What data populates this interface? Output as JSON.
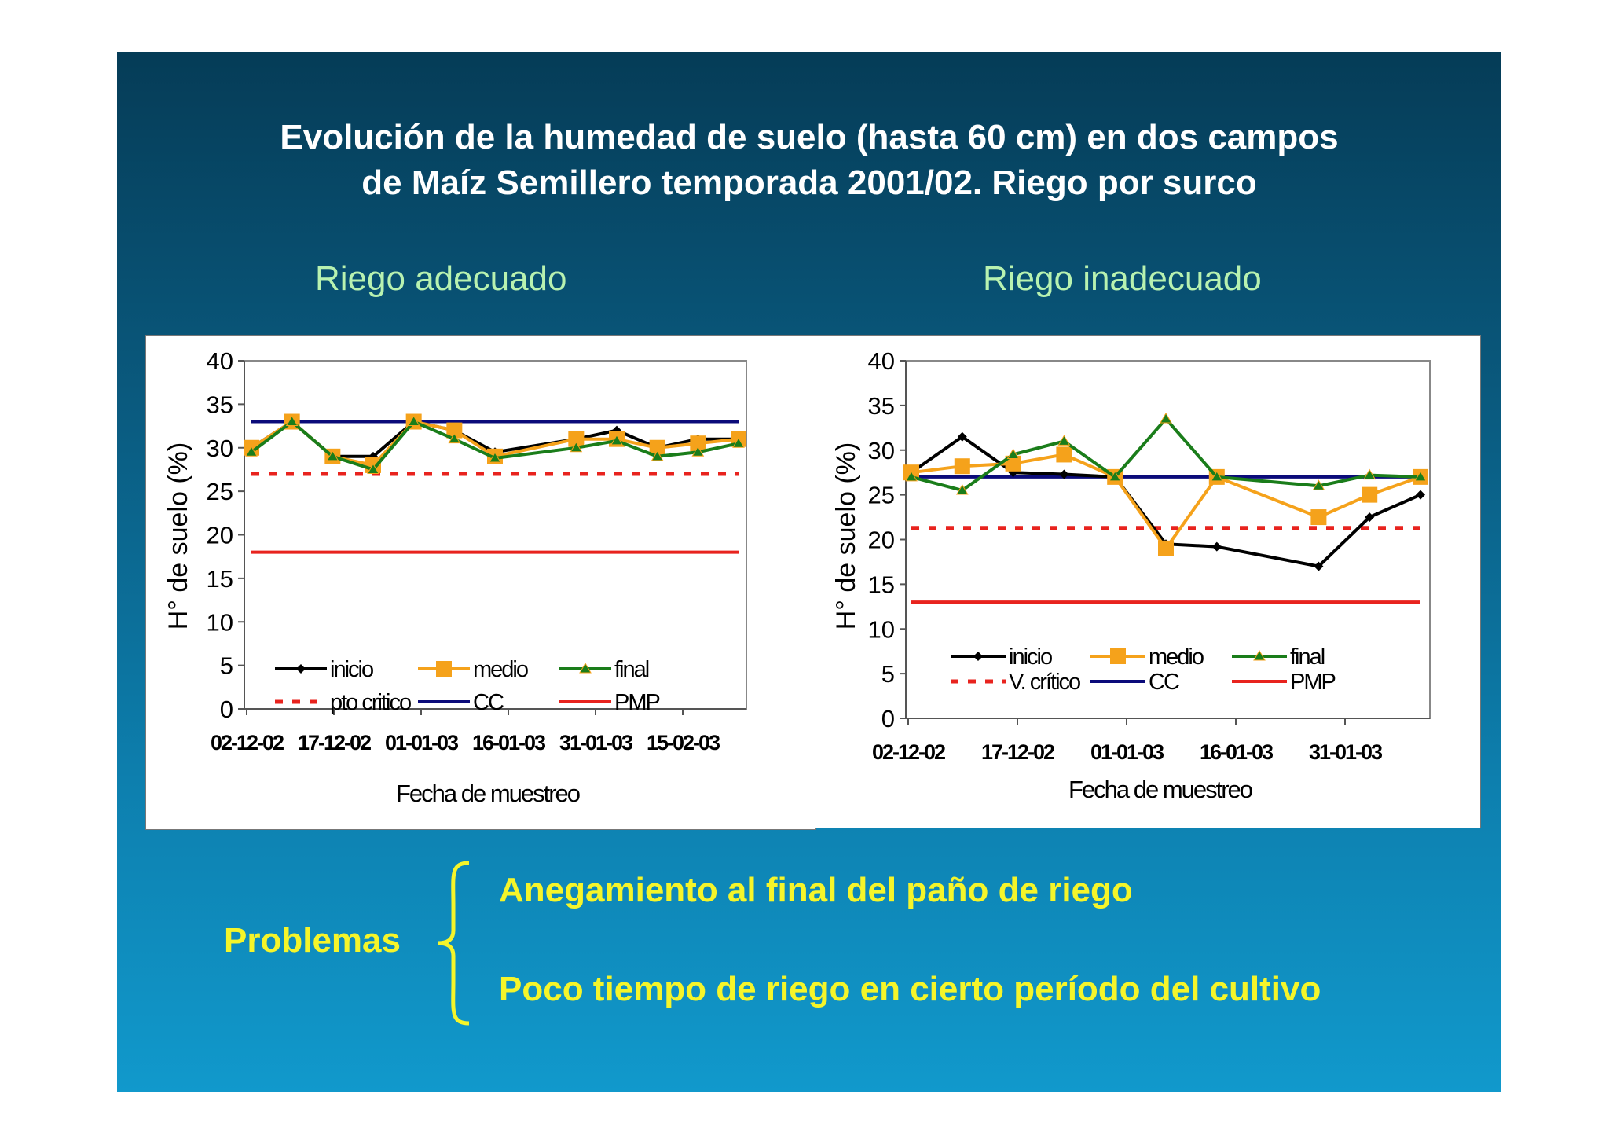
{
  "slide": {
    "title_line1": "Evolución de la humedad de suelo (hasta 60 cm) en dos campos",
    "title_line2": "de Maíz Semillero temporada 2001/02. Riego por surco",
    "left_heading": "Riego adecuado",
    "right_heading": "Riego inadecuado",
    "problems_label": "Problemas",
    "problem_1": "Anegamiento al final del paño de riego",
    "problem_2": "Poco tiempo de riego en cierto período del cultivo",
    "colors": {
      "inicio": "#000000",
      "medio": "#f5a21b",
      "final": "#1a7d1a",
      "critical": "#e8231e",
      "cc": "#0b0b7a",
      "pmp": "#e8231e"
    }
  },
  "chart_data": [
    {
      "type": "line",
      "ylabel": "H° de suelo (%)",
      "xlabel": "Fecha de muestreo",
      "ylim": [
        0,
        40
      ],
      "yticks": [
        0,
        5,
        10,
        15,
        20,
        25,
        30,
        35,
        40
      ],
      "xtick_labels": [
        "02-12-02",
        "17-12-02",
        "01-01-03",
        "16-01-03",
        "31-01-03",
        "15-02-03"
      ],
      "grid": false,
      "legend": "bottom-inside",
      "series": [
        {
          "name": "inicio",
          "values": [
            30,
            33,
            29,
            29,
            33,
            32,
            29.5,
            null,
            31,
            32,
            30,
            31,
            31
          ]
        },
        {
          "name": "medio",
          "values": [
            30,
            33,
            29,
            28,
            33,
            32,
            29,
            null,
            31,
            31,
            30,
            30.5,
            31
          ]
        },
        {
          "name": "final",
          "values": [
            29.5,
            33,
            29,
            27.5,
            33,
            31,
            28.8,
            null,
            30,
            30.8,
            29,
            29.5,
            30.5
          ]
        },
        {
          "name": "pto critico",
          "values": [
            27,
            27,
            27,
            27,
            27,
            27,
            27,
            27,
            27,
            27,
            27,
            27,
            27
          ]
        },
        {
          "name": "CC",
          "values": [
            33,
            33,
            33,
            33,
            33,
            33,
            33,
            33,
            33,
            33,
            33,
            33,
            33
          ]
        },
        {
          "name": "PMP",
          "values": [
            18,
            18,
            18,
            18,
            18,
            18,
            18,
            18,
            18,
            18,
            18,
            18,
            18
          ]
        }
      ]
    },
    {
      "type": "line",
      "ylabel": "H° de suelo (%)",
      "xlabel": "Fecha de muestreo",
      "ylim": [
        0,
        40
      ],
      "yticks": [
        0,
        5,
        10,
        15,
        20,
        25,
        30,
        35,
        40
      ],
      "xtick_labels": [
        "02-12-02",
        "17-12-02",
        "01-01-03",
        "16-01-03",
        "31-01-03"
      ],
      "grid": false,
      "legend": "bottom-inside",
      "series": [
        {
          "name": "inicio",
          "values": [
            27.5,
            31.5,
            27.5,
            27.3,
            27,
            19.5,
            19.2,
            null,
            17,
            22.5,
            25
          ]
        },
        {
          "name": "medio",
          "values": [
            27.5,
            28.2,
            28.5,
            29.5,
            27,
            19,
            27,
            null,
            22.5,
            25,
            27
          ]
        },
        {
          "name": "final",
          "values": [
            27,
            25.5,
            29.5,
            31,
            27,
            33.5,
            27,
            null,
            26,
            27.2,
            27
          ]
        },
        {
          "name": "V. crítico",
          "values": [
            21.3,
            21.3,
            21.3,
            21.3,
            21.3,
            21.3,
            21.3,
            21.3,
            21.3,
            21.3,
            21.3
          ]
        },
        {
          "name": "CC",
          "values": [
            27,
            27,
            27,
            27,
            27,
            27,
            27,
            27,
            27,
            27,
            27
          ]
        },
        {
          "name": "PMP",
          "values": [
            13,
            13,
            13,
            13,
            13,
            13,
            13,
            13,
            13,
            13,
            13
          ]
        }
      ]
    }
  ]
}
